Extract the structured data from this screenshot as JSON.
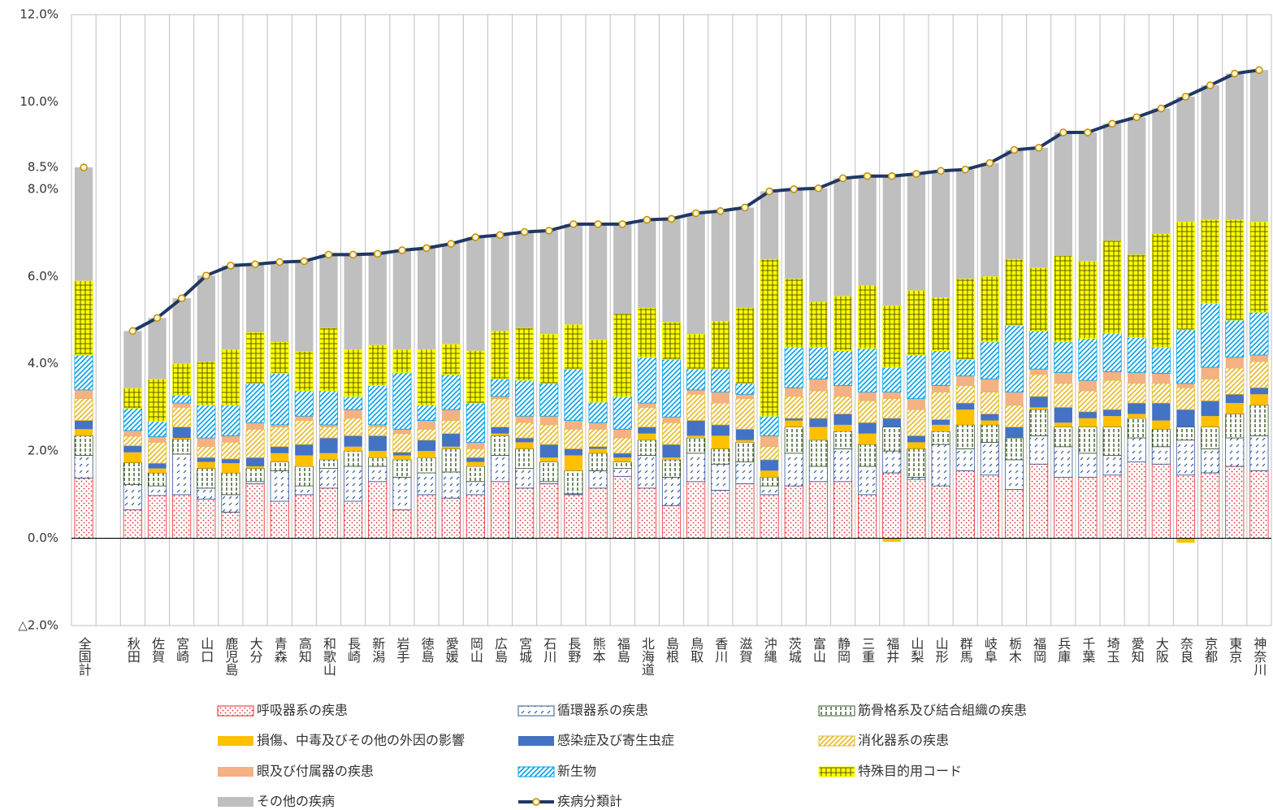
{
  "chart_data": {
    "type": "bar",
    "stacked": true,
    "categories": [
      "全国計",
      null,
      "秋田",
      "佐賀",
      "宮崎",
      "山口",
      "鹿児島",
      "大分",
      "青森",
      "高知",
      "和歌山",
      "長崎",
      "新潟",
      "岩手",
      "徳島",
      "愛媛",
      "岡山",
      "広島",
      "宮城",
      "石川",
      "長野",
      "熊本",
      "福島",
      "北海道",
      "島根",
      "鳥取",
      "香川",
      "滋賀",
      "沖縄",
      "茨城",
      "富山",
      "静岡",
      "三重",
      "福井",
      "山梨",
      "山形",
      "群馬",
      "岐阜",
      "栃木",
      "福岡",
      "兵庫",
      "千葉",
      "埼玉",
      "愛知",
      "大阪",
      "奈良",
      "京都",
      "東京",
      "神奈川"
    ],
    "ylim": [
      -2,
      12
    ],
    "yticks": [
      {
        "value": -2,
        "label": "△2.0%"
      },
      {
        "value": 0,
        "label": "0.0%"
      },
      {
        "value": 2,
        "label": "2.0%"
      },
      {
        "value": 4,
        "label": "4.0%"
      },
      {
        "value": 6,
        "label": "6.0%"
      },
      {
        "value": 8,
        "label": "8.0%"
      },
      {
        "value": 8.5,
        "label": "8.5%"
      },
      {
        "value": 10,
        "label": "10.0%"
      },
      {
        "value": 12,
        "label": "12.0%"
      }
    ],
    "grid": false,
    "series": [
      {
        "name": "呼吸器系の疾患",
        "color": "#E8252A",
        "pattern": "dots",
        "values": [
          1.38,
          null,
          0.65,
          0.98,
          1.0,
          0.9,
          0.6,
          1.25,
          0.85,
          1.0,
          1.15,
          0.85,
          1.3,
          0.65,
          1.0,
          0.92,
          1.0,
          1.3,
          1.15,
          1.25,
          1.0,
          1.15,
          1.42,
          1.15,
          0.75,
          1.3,
          1.1,
          1.25,
          1.0,
          1.2,
          1.3,
          1.3,
          1.0,
          1.5,
          1.35,
          1.2,
          1.55,
          1.45,
          1.12,
          1.7,
          1.4,
          1.4,
          1.45,
          1.75,
          1.7,
          1.45,
          1.5,
          1.65,
          1.55
        ]
      },
      {
        "name": "循環器系の疾患",
        "color": "#2F5597",
        "pattern": "ticks",
        "values": [
          0.52,
          null,
          0.58,
          0.22,
          0.93,
          0.25,
          0.4,
          0.05,
          0.7,
          0.2,
          0.45,
          0.8,
          0.35,
          0.75,
          0.5,
          0.6,
          0.3,
          0.6,
          0.45,
          0.05,
          0.02,
          0.4,
          0.18,
          0.75,
          0.65,
          0.65,
          0.6,
          0.5,
          0.2,
          0.75,
          0.35,
          0.75,
          0.65,
          0.5,
          0.05,
          0.95,
          0.5,
          0.75,
          0.68,
          0.65,
          0.7,
          0.55,
          0.45,
          0.55,
          0.4,
          0.8,
          0.55,
          0.65,
          0.8
        ]
      },
      {
        "name": "筋骨格系及び結合組織の疾患",
        "color": "#375623",
        "pattern": "vdash",
        "values": [
          0.45,
          null,
          0.5,
          0.3,
          0.34,
          0.45,
          0.5,
          0.3,
          0.2,
          0.45,
          0.2,
          0.35,
          0.2,
          0.4,
          0.35,
          0.53,
          0.35,
          0.45,
          0.45,
          0.45,
          0.53,
          0.4,
          0.15,
          0.35,
          0.4,
          0.35,
          0.35,
          0.45,
          0.2,
          0.6,
          0.6,
          0.4,
          0.5,
          0.55,
          0.65,
          0.3,
          0.55,
          0.4,
          0.5,
          0.6,
          0.45,
          0.6,
          0.65,
          0.45,
          0.4,
          0.3,
          0.5,
          0.55,
          0.7
        ]
      },
      {
        "name": "損傷、中毒及びその他の外因の影響",
        "color": "#FFC000",
        "pattern": "solid",
        "values": [
          0.15,
          null,
          0.24,
          0.1,
          0.03,
          0.15,
          0.22,
          0.05,
          0.2,
          0.25,
          0.15,
          0.1,
          0.15,
          0.1,
          0.15,
          0.05,
          0.1,
          0.05,
          0.15,
          0.1,
          0.35,
          0.1,
          0.1,
          0.15,
          0.05,
          0.05,
          0.3,
          0.05,
          0.15,
          0.15,
          0.3,
          0.15,
          0.25,
          -0.08,
          0.15,
          0.15,
          0.35,
          0.1,
          0,
          0.05,
          0.1,
          0.2,
          0.25,
          0.1,
          0.2,
          -0.1,
          0.25,
          0.25,
          0.25
        ]
      },
      {
        "name": "感染症及び寄生虫症",
        "color": "#4472C4",
        "pattern": "solid",
        "values": [
          0.2,
          null,
          0.15,
          0.12,
          0.25,
          0.1,
          0.1,
          0.2,
          0.15,
          0.25,
          0.35,
          0.25,
          0.35,
          0.07,
          0.25,
          0.3,
          0.1,
          0.15,
          0.1,
          0.3,
          0.15,
          0.05,
          0.1,
          0.15,
          0.3,
          0.35,
          0.25,
          0.25,
          0.25,
          0.05,
          0.2,
          0.25,
          0.25,
          0.2,
          0.15,
          0.12,
          0.15,
          0.15,
          0.25,
          0.25,
          0.35,
          0.15,
          0.15,
          0.25,
          0.4,
          0.4,
          0.35,
          0.2,
          0.15
        ]
      },
      {
        "name": "消化器系の疾患",
        "color": "#E6B922",
        "pattern": "hatch",
        "values": [
          0.5,
          null,
          0.22,
          0.48,
          0.45,
          0.25,
          0.38,
          0.65,
          0.45,
          0.55,
          0.25,
          0.4,
          0.2,
          0.43,
          0.25,
          0.3,
          0.2,
          0.65,
          0.35,
          0.45,
          0.45,
          0.4,
          0.35,
          0.45,
          0.5,
          0.6,
          0.5,
          0.7,
          0.3,
          0.5,
          0.63,
          0.4,
          0.5,
          0.45,
          0.6,
          0.63,
          0.4,
          0.5,
          0.5,
          0.5,
          0.55,
          0.48,
          0.67,
          0.45,
          0.45,
          0.5,
          0.5,
          0.6,
          0.6
        ]
      },
      {
        "name": "眼及び付属器の疾患",
        "color": "#F4B183",
        "pattern": "solid",
        "values": [
          0.2,
          null,
          0.13,
          0.13,
          0.1,
          0.2,
          0.15,
          0.15,
          0.05,
          0.1,
          0.05,
          0.2,
          0.05,
          0.1,
          0.2,
          0.25,
          0.15,
          0.05,
          0.15,
          0.2,
          0.2,
          0.15,
          0.2,
          0.1,
          0.13,
          0.1,
          0.25,
          0.1,
          0.25,
          0.2,
          0.27,
          0.25,
          0.2,
          0.15,
          0.25,
          0.15,
          0.22,
          0.3,
          0.3,
          0.13,
          0.25,
          0.24,
          0.2,
          0.25,
          0.23,
          0.1,
          0.27,
          0.25,
          0.15
        ]
      },
      {
        "name": "新生物",
        "color": "#00A0E9",
        "pattern": "hatch",
        "values": [
          0.8,
          null,
          0.51,
          0.35,
          0.18,
          0.75,
          0.7,
          0.9,
          1.18,
          0.58,
          0.78,
          0.3,
          0.9,
          1.3,
          0.35,
          0.8,
          0.9,
          0.4,
          0.82,
          0.75,
          1.18,
          0.47,
          0.75,
          1.05,
          1.32,
          0.48,
          0.53,
          0.25,
          0.45,
          0.93,
          0.73,
          0.8,
          1.0,
          0.57,
          1.0,
          0.8,
          0.38,
          0.85,
          1.53,
          0.87,
          0.7,
          0.96,
          0.88,
          0.8,
          0.6,
          1.23,
          1.46,
          0.85,
          0.98
        ]
      },
      {
        "name": "特殊目的用コード",
        "color": "#FFFF00",
        "pattern": "grid",
        "values": [
          1.7,
          null,
          0.46,
          0.97,
          0.72,
          1.0,
          1.28,
          1.17,
          0.72,
          0.9,
          1.44,
          1.08,
          0.93,
          0.53,
          1.28,
          0.7,
          1.2,
          1.1,
          1.2,
          1.13,
          1.02,
          1.43,
          1.9,
          1.13,
          0.85,
          0.8,
          1.1,
          1.73,
          3.6,
          1.57,
          1.04,
          1.25,
          1.45,
          1.41,
          1.48,
          1.22,
          1.85,
          1.5,
          1.52,
          1.45,
          1.98,
          1.77,
          2.12,
          1.9,
          2.6,
          2.47,
          1.92,
          2.3,
          2.07
        ]
      },
      {
        "name": "その他の疾病",
        "color": "#BFBFBF",
        "pattern": "solid",
        "values": [
          2.6,
          null,
          1.31,
          1.4,
          1.5,
          1.97,
          1.92,
          1.56,
          1.83,
          2.07,
          1.68,
          2.17,
          2.09,
          2.27,
          2.32,
          2.3,
          2.6,
          2.2,
          2.2,
          2.37,
          2.3,
          2.65,
          2.05,
          2.02,
          2.37,
          2.77,
          2.52,
          2.3,
          1.55,
          2.05,
          2.6,
          2.7,
          2.5,
          2.97,
          2.67,
          2.9,
          2.5,
          2.6,
          2.5,
          2.75,
          2.82,
          2.95,
          2.68,
          3.15,
          2.87,
          2.87,
          3.08,
          3.35,
          3.48
        ]
      },
      {
        "name": "疾病分類計",
        "type": "line",
        "color": "#203864",
        "values": [
          8.5,
          null,
          4.75,
          5.05,
          5.5,
          6.02,
          6.25,
          6.28,
          6.33,
          6.35,
          6.5,
          6.5,
          6.52,
          6.6,
          6.65,
          6.75,
          6.9,
          6.95,
          7.02,
          7.05,
          7.2,
          7.2,
          7.2,
          7.3,
          7.32,
          7.45,
          7.5,
          7.58,
          7.95,
          8.0,
          8.02,
          8.25,
          8.3,
          8.3,
          8.35,
          8.42,
          8.45,
          8.6,
          8.9,
          8.95,
          9.3,
          9.3,
          9.5,
          9.65,
          9.85,
          10.12,
          10.38,
          10.65,
          10.73
        ]
      }
    ]
  }
}
